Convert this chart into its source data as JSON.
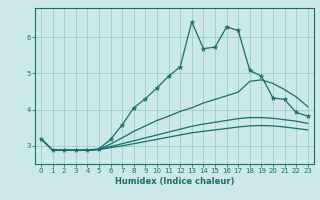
{
  "xlabel": "Humidex (Indice chaleur)",
  "bg_color": "#cce8e8",
  "grid_color": "#99cccc",
  "line_color": "#1a6b6b",
  "xlim": [
    -0.5,
    23.5
  ],
  "ylim": [
    2.5,
    6.8
  ],
  "yticks": [
    3,
    4,
    5,
    6
  ],
  "xticks": [
    0,
    1,
    2,
    3,
    4,
    5,
    6,
    7,
    8,
    9,
    10,
    11,
    12,
    13,
    14,
    15,
    16,
    17,
    18,
    19,
    20,
    21,
    22,
    23
  ],
  "series1_x": [
    0,
    1,
    2,
    3,
    4,
    5,
    6,
    7,
    8,
    9,
    10,
    11,
    12,
    13,
    14,
    15,
    16,
    17,
    18,
    19,
    20,
    21,
    22,
    23
  ],
  "series1_y": [
    3.2,
    2.88,
    2.88,
    2.88,
    2.88,
    2.92,
    3.18,
    3.58,
    4.05,
    4.3,
    4.6,
    4.92,
    5.18,
    6.42,
    5.68,
    5.72,
    6.28,
    6.18,
    5.08,
    4.92,
    4.32,
    4.28,
    3.92,
    3.82
  ],
  "series2_x": [
    0,
    1,
    2,
    3,
    4,
    5,
    6,
    7,
    8,
    9,
    10,
    11,
    12,
    13,
    14,
    15,
    16,
    17,
    18,
    19,
    20,
    21,
    22,
    23
  ],
  "series2_y": [
    3.2,
    2.88,
    2.88,
    2.88,
    2.88,
    2.9,
    3.05,
    3.22,
    3.4,
    3.55,
    3.7,
    3.82,
    3.95,
    4.05,
    4.18,
    4.28,
    4.38,
    4.48,
    4.78,
    4.82,
    4.72,
    4.55,
    4.35,
    4.08
  ],
  "series3_x": [
    0,
    1,
    2,
    3,
    4,
    5,
    6,
    7,
    8,
    9,
    10,
    11,
    12,
    13,
    14,
    15,
    16,
    17,
    18,
    19,
    20,
    21,
    22,
    23
  ],
  "series3_y": [
    3.2,
    2.88,
    2.88,
    2.88,
    2.88,
    2.9,
    2.98,
    3.06,
    3.14,
    3.22,
    3.3,
    3.38,
    3.46,
    3.54,
    3.6,
    3.65,
    3.7,
    3.75,
    3.78,
    3.78,
    3.76,
    3.72,
    3.68,
    3.62
  ],
  "series4_x": [
    0,
    1,
    2,
    3,
    4,
    5,
    6,
    7,
    8,
    9,
    10,
    11,
    12,
    13,
    14,
    15,
    16,
    17,
    18,
    19,
    20,
    21,
    22,
    23
  ],
  "series4_y": [
    3.2,
    2.88,
    2.88,
    2.88,
    2.88,
    2.9,
    2.95,
    3.0,
    3.06,
    3.12,
    3.18,
    3.24,
    3.3,
    3.36,
    3.4,
    3.44,
    3.48,
    3.52,
    3.55,
    3.56,
    3.55,
    3.52,
    3.48,
    3.44
  ]
}
